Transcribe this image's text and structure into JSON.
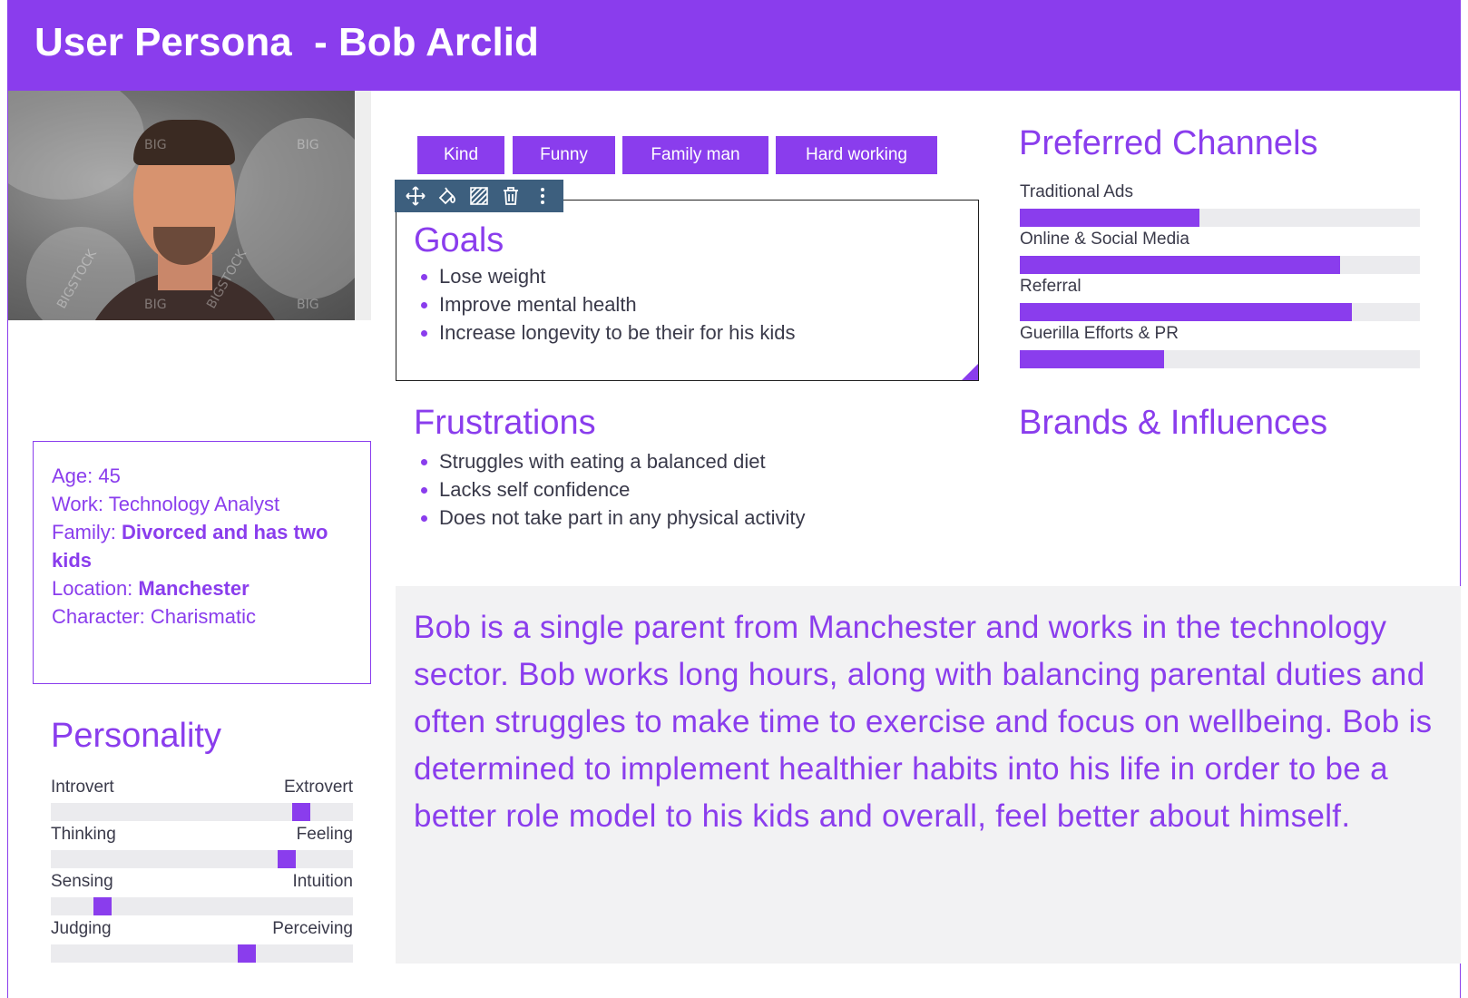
{
  "header": {
    "title": "User Persona  - Bob Arclid"
  },
  "photo": {
    "alt": "Bob Arclid portrait",
    "watermarks": [
      "BIG",
      "BIG",
      "BIGSTOCK",
      "BIGSTOCK",
      "BIG",
      "BIG"
    ]
  },
  "tags": [
    "Kind",
    "Funny",
    "Family man",
    "Hard working"
  ],
  "toolbar": {
    "icons": [
      "move-icon",
      "fill-icon",
      "pattern-icon",
      "trash-icon",
      "more-icon"
    ]
  },
  "goals": {
    "title": "Goals",
    "items": [
      "Lose weight",
      "Improve mental health",
      "Increase longevity to be their for his kids"
    ]
  },
  "frustrations": {
    "title": "Frustrations",
    "items": [
      "Struggles with eating a balanced diet",
      "Lacks self confidence",
      "Does not take part in any physical activity"
    ]
  },
  "channels": {
    "title": "Preferred Channels",
    "items": [
      {
        "label": "Traditional Ads",
        "value": 0.45
      },
      {
        "label": "Online & Social Media",
        "value": 0.8
      },
      {
        "label": "Referral",
        "value": 0.83
      },
      {
        "label": "Guerilla Efforts & PR",
        "value": 0.36
      }
    ]
  },
  "brands": {
    "title": "Brands & Influences"
  },
  "info": {
    "age_label": "Age: ",
    "age": "45",
    "work_label": "Work: ",
    "work": "Technology Analyst",
    "family_label": "Family: ",
    "family": "Divorced and has two kids",
    "location_label": "Location: ",
    "location": "Manchester",
    "character_label": "Character: ",
    "character": "Charismatic"
  },
  "personality": {
    "title": "Personality",
    "traits": [
      {
        "left": "Introvert",
        "right": "Extrovert",
        "value": 0.83
      },
      {
        "left": "Thinking",
        "right": "Feeling",
        "value": 0.78
      },
      {
        "left": "Sensing",
        "right": "Intuition",
        "value": 0.17
      },
      {
        "left": "Judging",
        "right": "Perceiving",
        "value": 0.65
      }
    ]
  },
  "bio": {
    "text": "Bob is a single parent from Manchester and works in the technology sector. Bob works long hours, along with balancing parental duties and often struggles to make time to exercise and focus on wellbeing. Bob is determined to implement healthier habits into his life in order to be a better role model to his kids and overall, feel better about himself."
  },
  "colors": {
    "accent": "#8a3ded",
    "toolbar": "#3d5f7e",
    "track": "#ebebee",
    "bio_bg": "#f2f2f3"
  }
}
